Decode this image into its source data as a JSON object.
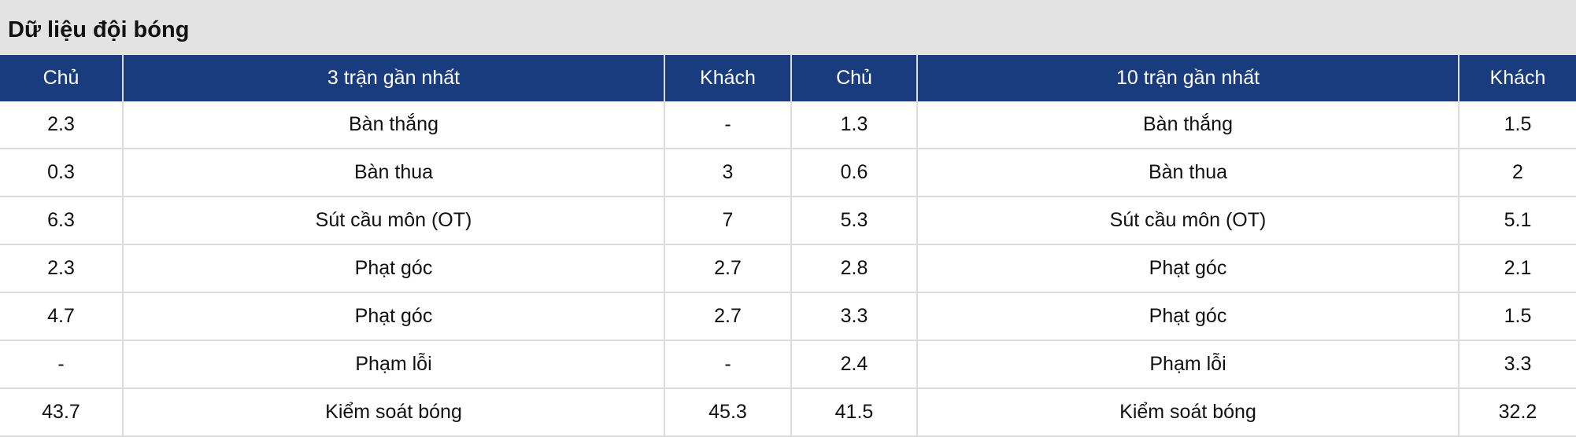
{
  "title": "Dữ liệu đội bóng",
  "headers": [
    "Chủ",
    "3 trận gần nhất",
    "Khách",
    "Chủ",
    "10 trận gần nhất",
    "Khách"
  ],
  "rows": [
    [
      "2.3",
      "Bàn thắng",
      "-",
      "1.3",
      "Bàn thắng",
      "1.5"
    ],
    [
      "0.3",
      "Bàn thua",
      "3",
      "0.6",
      "Bàn thua",
      "2"
    ],
    [
      "6.3",
      "Sút cầu môn (OT)",
      "7",
      "5.3",
      "Sút cầu môn (OT)",
      "5.1"
    ],
    [
      "2.3",
      "Phạt góc",
      "2.7",
      "2.8",
      "Phạt góc",
      "2.1"
    ],
    [
      "4.7",
      "Phạt góc",
      "2.7",
      "3.3",
      "Phạt góc",
      "1.5"
    ],
    [
      "-",
      "Phạm lỗi",
      "-",
      "2.4",
      "Phạm lỗi",
      "3.3"
    ],
    [
      "43.7",
      "Kiểm soát bóng",
      "45.3",
      "41.5",
      "Kiểm soát bóng",
      "32.2"
    ]
  ]
}
